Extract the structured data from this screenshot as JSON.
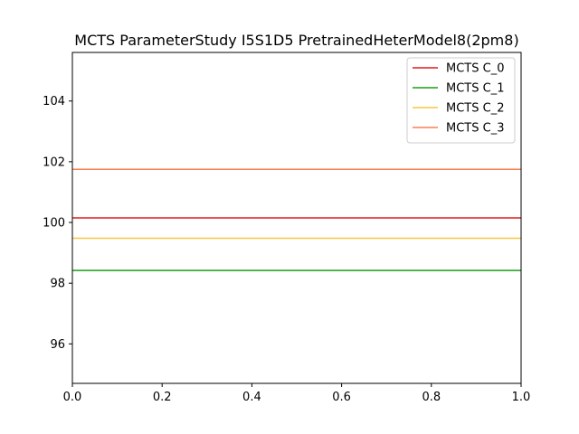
{
  "chart_data": {
    "type": "line",
    "title": "MCTS ParameterStudy I5S1D5 PretrainedHeterModel8(2pm8)",
    "xlabel": "",
    "ylabel": "",
    "xlim": [
      0.0,
      1.0
    ],
    "ylim": [
      94.7,
      105.6
    ],
    "x_ticks": [
      {
        "value": 0.0,
        "label": "0.0"
      },
      {
        "value": 0.2,
        "label": "0.2"
      },
      {
        "value": 0.4,
        "label": "0.4"
      },
      {
        "value": 0.6,
        "label": "0.6"
      },
      {
        "value": 0.8,
        "label": "0.8"
      },
      {
        "value": 1.0,
        "label": "1.0"
      }
    ],
    "y_ticks": [
      {
        "value": 96,
        "label": "96"
      },
      {
        "value": 98,
        "label": "98"
      },
      {
        "value": 100,
        "label": "100"
      },
      {
        "value": 102,
        "label": "102"
      },
      {
        "value": 104,
        "label": "104"
      }
    ],
    "grid": false,
    "legend": "top-right",
    "series": [
      {
        "name": "MCTS C_0",
        "color": "#e41a1c",
        "x": [
          0.0,
          1.0
        ],
        "y": [
          100.15,
          100.15
        ]
      },
      {
        "name": "MCTS C_1",
        "color": "#1a9e1a",
        "x": [
          0.0,
          1.0
        ],
        "y": [
          98.42,
          98.42
        ]
      },
      {
        "name": "MCTS C_2",
        "color": "#f5c542",
        "x": [
          0.0,
          1.0
        ],
        "y": [
          99.48,
          99.48
        ]
      },
      {
        "name": "MCTS C_3",
        "color": "#ff7f50",
        "x": [
          0.0,
          1.0
        ],
        "y": [
          101.75,
          101.75
        ]
      }
    ]
  }
}
